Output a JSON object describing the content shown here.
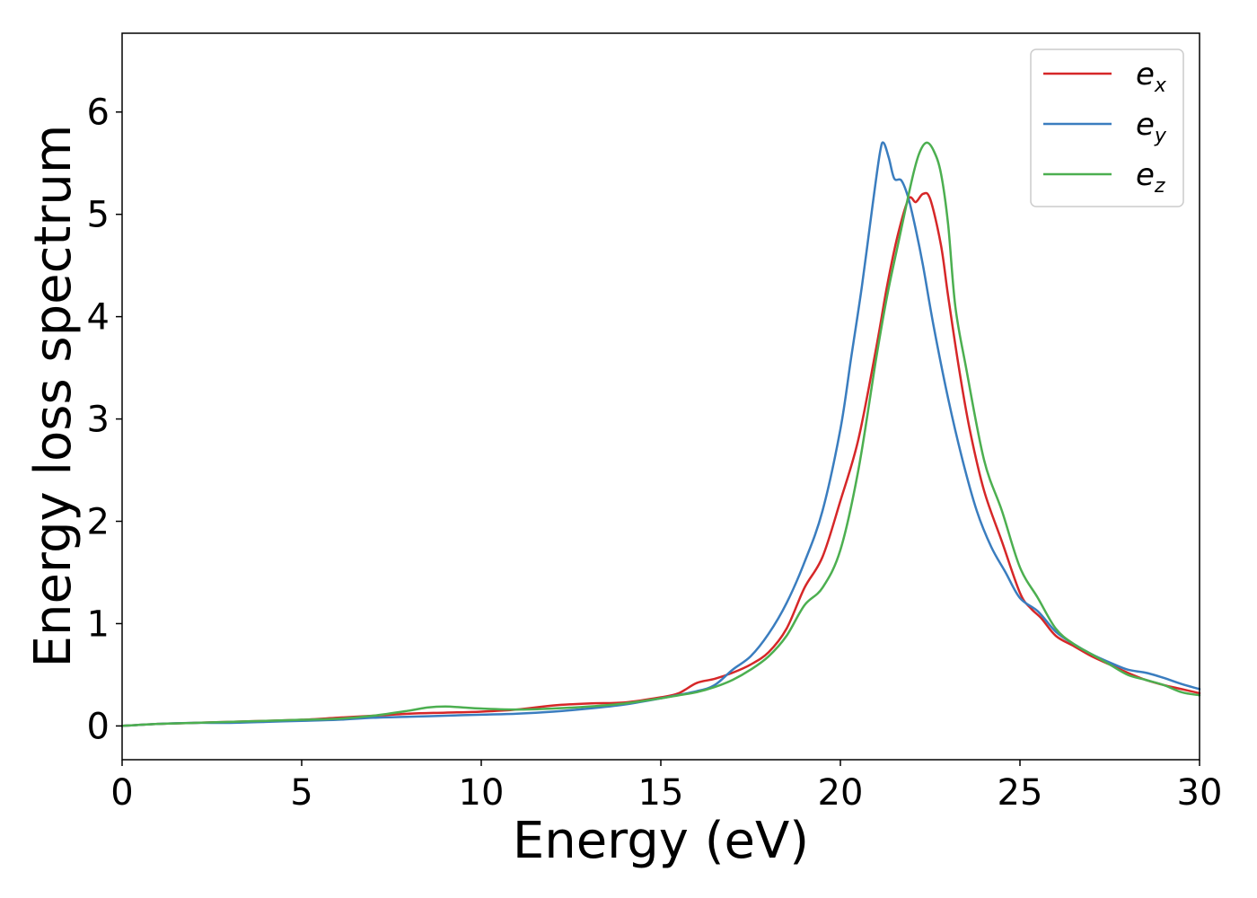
{
  "chart_data": {
    "type": "line",
    "title": "",
    "xlabel": "Energy (eV)",
    "ylabel": "Energy loss spectrum",
    "xlim": [
      0,
      30
    ],
    "ylim": [
      -0.33,
      6.77
    ],
    "xticks": [
      0,
      5,
      10,
      15,
      20,
      25,
      30
    ],
    "yticks": [
      0,
      1,
      2,
      3,
      4,
      5,
      6
    ],
    "xtick_labels": [
      "0",
      "5",
      "10",
      "15",
      "20",
      "25",
      "30"
    ],
    "ytick_labels": [
      "0",
      "1",
      "2",
      "3",
      "4",
      "5",
      "6"
    ],
    "grid": false,
    "legend_position": "top-right",
    "series": [
      {
        "name": "e_x",
        "legend_base": "e",
        "legend_sub": "x",
        "color": "#d62728",
        "points": [
          [
            0,
            0.0
          ],
          [
            1,
            0.02
          ],
          [
            2,
            0.03
          ],
          [
            3,
            0.04
          ],
          [
            4,
            0.05
          ],
          [
            5,
            0.06
          ],
          [
            6,
            0.08
          ],
          [
            7,
            0.1
          ],
          [
            8,
            0.12
          ],
          [
            9,
            0.13
          ],
          [
            10,
            0.14
          ],
          [
            11,
            0.16
          ],
          [
            12,
            0.2
          ],
          [
            13,
            0.22
          ],
          [
            14,
            0.23
          ],
          [
            15,
            0.28
          ],
          [
            15.5,
            0.32
          ],
          [
            16,
            0.42
          ],
          [
            16.5,
            0.46
          ],
          [
            17,
            0.52
          ],
          [
            17.5,
            0.6
          ],
          [
            18,
            0.72
          ],
          [
            18.5,
            0.95
          ],
          [
            19,
            1.35
          ],
          [
            19.5,
            1.65
          ],
          [
            20,
            2.2
          ],
          [
            20.5,
            2.8
          ],
          [
            21,
            3.7
          ],
          [
            21.3,
            4.3
          ],
          [
            21.6,
            4.8
          ],
          [
            21.9,
            5.15
          ],
          [
            22.1,
            5.12
          ],
          [
            22.3,
            5.2
          ],
          [
            22.5,
            5.15
          ],
          [
            22.8,
            4.7
          ],
          [
            23,
            4.2
          ],
          [
            23.3,
            3.5
          ],
          [
            23.6,
            2.9
          ],
          [
            24,
            2.3
          ],
          [
            24.5,
            1.8
          ],
          [
            25,
            1.3
          ],
          [
            25.3,
            1.15
          ],
          [
            25.6,
            1.05
          ],
          [
            26,
            0.88
          ],
          [
            26.5,
            0.78
          ],
          [
            27,
            0.68
          ],
          [
            27.5,
            0.6
          ],
          [
            28,
            0.52
          ],
          [
            28.5,
            0.45
          ],
          [
            29,
            0.4
          ],
          [
            29.5,
            0.36
          ],
          [
            30,
            0.32
          ]
        ]
      },
      {
        "name": "e_y",
        "legend_base": "e",
        "legend_sub": "y",
        "color": "#3a7dbf",
        "points": [
          [
            0,
            0.0
          ],
          [
            1,
            0.02
          ],
          [
            2,
            0.03
          ],
          [
            3,
            0.03
          ],
          [
            4,
            0.04
          ],
          [
            5,
            0.05
          ],
          [
            6,
            0.06
          ],
          [
            7,
            0.08
          ],
          [
            8,
            0.09
          ],
          [
            9,
            0.1
          ],
          [
            10,
            0.11
          ],
          [
            11,
            0.12
          ],
          [
            12,
            0.14
          ],
          [
            13,
            0.17
          ],
          [
            14,
            0.21
          ],
          [
            15,
            0.27
          ],
          [
            16,
            0.34
          ],
          [
            16.5,
            0.4
          ],
          [
            17,
            0.55
          ],
          [
            17.5,
            0.68
          ],
          [
            18,
            0.9
          ],
          [
            18.5,
            1.2
          ],
          [
            19,
            1.6
          ],
          [
            19.5,
            2.1
          ],
          [
            20,
            2.9
          ],
          [
            20.3,
            3.6
          ],
          [
            20.6,
            4.3
          ],
          [
            20.9,
            5.1
          ],
          [
            21.1,
            5.6
          ],
          [
            21.2,
            5.7
          ],
          [
            21.35,
            5.55
          ],
          [
            21.5,
            5.35
          ],
          [
            21.7,
            5.33
          ],
          [
            21.9,
            5.15
          ],
          [
            22.1,
            4.85
          ],
          [
            22.3,
            4.5
          ],
          [
            22.6,
            3.9
          ],
          [
            23,
            3.2
          ],
          [
            23.4,
            2.6
          ],
          [
            23.8,
            2.1
          ],
          [
            24.2,
            1.75
          ],
          [
            24.6,
            1.5
          ],
          [
            25,
            1.25
          ],
          [
            25.5,
            1.12
          ],
          [
            26,
            0.92
          ],
          [
            26.5,
            0.8
          ],
          [
            27,
            0.7
          ],
          [
            27.5,
            0.62
          ],
          [
            28,
            0.55
          ],
          [
            28.5,
            0.52
          ],
          [
            29,
            0.47
          ],
          [
            29.5,
            0.41
          ],
          [
            30,
            0.36
          ]
        ]
      },
      {
        "name": "e_z",
        "legend_base": "e",
        "legend_sub": "z",
        "color": "#4caf50",
        "points": [
          [
            0,
            0.0
          ],
          [
            1,
            0.02
          ],
          [
            2,
            0.03
          ],
          [
            3,
            0.04
          ],
          [
            4,
            0.05
          ],
          [
            5,
            0.06
          ],
          [
            6,
            0.07
          ],
          [
            7,
            0.1
          ],
          [
            8,
            0.15
          ],
          [
            8.5,
            0.18
          ],
          [
            9,
            0.19
          ],
          [
            9.5,
            0.18
          ],
          [
            10,
            0.17
          ],
          [
            11,
            0.16
          ],
          [
            12,
            0.17
          ],
          [
            13,
            0.19
          ],
          [
            14,
            0.22
          ],
          [
            15,
            0.27
          ],
          [
            15.5,
            0.3
          ],
          [
            16,
            0.33
          ],
          [
            16.5,
            0.38
          ],
          [
            17,
            0.45
          ],
          [
            17.5,
            0.55
          ],
          [
            18,
            0.68
          ],
          [
            18.5,
            0.88
          ],
          [
            19,
            1.18
          ],
          [
            19.5,
            1.35
          ],
          [
            20,
            1.72
          ],
          [
            20.5,
            2.5
          ],
          [
            21,
            3.6
          ],
          [
            21.3,
            4.2
          ],
          [
            21.6,
            4.7
          ],
          [
            22,
            5.35
          ],
          [
            22.2,
            5.6
          ],
          [
            22.4,
            5.7
          ],
          [
            22.6,
            5.62
          ],
          [
            22.8,
            5.4
          ],
          [
            23,
            4.9
          ],
          [
            23.2,
            4.1
          ],
          [
            23.5,
            3.5
          ],
          [
            24,
            2.6
          ],
          [
            24.5,
            2.1
          ],
          [
            25,
            1.55
          ],
          [
            25.5,
            1.25
          ],
          [
            26,
            0.95
          ],
          [
            26.5,
            0.8
          ],
          [
            27,
            0.7
          ],
          [
            27.5,
            0.6
          ],
          [
            28,
            0.5
          ],
          [
            28.5,
            0.45
          ],
          [
            29,
            0.4
          ],
          [
            29.5,
            0.33
          ],
          [
            30,
            0.3
          ]
        ]
      }
    ]
  }
}
